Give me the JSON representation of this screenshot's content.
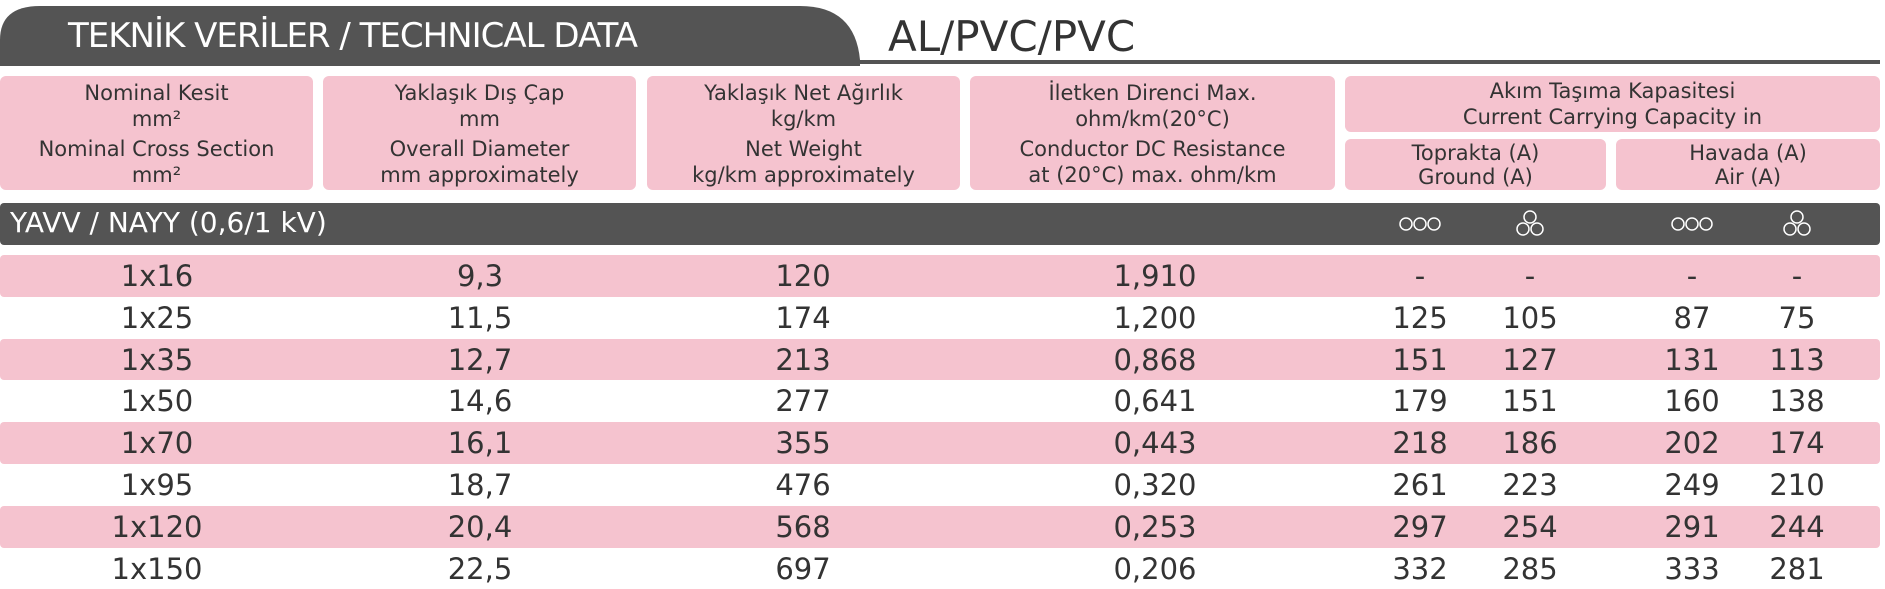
{
  "header": {
    "title": "TEKNİK  VERİLER /  TECHNICAL DATA",
    "subtitle": "AL/PVC/PVC"
  },
  "columns": [
    {
      "tr": "Nominal Kesit",
      "tr_unit": "mm²",
      "en": "Nominal Cross Section",
      "en_unit": "mm²"
    },
    {
      "tr": "Yaklaşık Dış Çap",
      "tr_unit": "mm",
      "en": "Overall Diameter",
      "en_unit": "mm approximately"
    },
    {
      "tr": "Yaklaşık Net  Ağırlık",
      "tr_unit": "kg/km",
      "en": "Net Weight",
      "en_unit": "kg/km approximately"
    },
    {
      "tr": "İletken Direnci Max.",
      "tr_unit": "ohm/km(20°C)",
      "en": "Conductor DC Resistance",
      "en_unit": "at (20°C) max. ohm/km"
    }
  ],
  "capacity": {
    "tr": "Akım Taşıma Kapasitesi",
    "en": "Current Carrying Capacity in",
    "ground": {
      "tr": "Toprakta (A)",
      "en": "Ground (A)"
    },
    "air": {
      "tr": "Havada (A)",
      "en": "Air (A)"
    }
  },
  "group": "YAVV / NAYY (0,6/1 kV)",
  "rows": [
    [
      "1x16",
      "9,3",
      "120",
      "1,910",
      "-",
      "-",
      "-",
      "-"
    ],
    [
      "1x25",
      "11,5",
      "174",
      "1,200",
      "125",
      "105",
      "87",
      "75"
    ],
    [
      "1x35",
      "12,7",
      "213",
      "0,868",
      "151",
      "127",
      "131",
      "113"
    ],
    [
      "1x50",
      "14,6",
      "277",
      "0,641",
      "179",
      "151",
      "160",
      "138"
    ],
    [
      "1x70",
      "16,1",
      "355",
      "0,443",
      "218",
      "186",
      "202",
      "174"
    ],
    [
      "1x95",
      "18,7",
      "476",
      "0,320",
      "261",
      "223",
      "249",
      "210"
    ],
    [
      "1x120",
      "20,4",
      "568",
      "0,253",
      "297",
      "254",
      "291",
      "244"
    ],
    [
      "1x150",
      "22,5",
      "697",
      "0,206",
      "332",
      "285",
      "333",
      "281"
    ]
  ]
}
